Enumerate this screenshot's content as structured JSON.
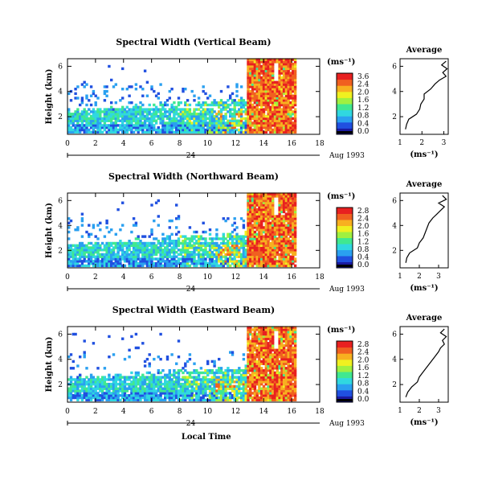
{
  "chart_data": [
    {
      "type": "heatmap",
      "title": "Spectral Width (Vertical Beam)",
      "ylabel": "Height (km)",
      "xlim": [
        0,
        18
      ],
      "ylim": [
        0.6,
        6.6
      ],
      "xticks": [
        "0",
        "2",
        "4",
        "6",
        "8",
        "10",
        "12",
        "14",
        "16",
        "18"
      ],
      "yticks": [
        "2",
        "4",
        "6"
      ],
      "day_label": "24",
      "date_label": "Aug 1993",
      "colorbar": {
        "unit": "(ms⁻¹)",
        "ticks": [
          "3.6",
          "2.4",
          "2.0",
          "1.6",
          "1.2",
          "0.8",
          "0.4",
          "0.0"
        ]
      },
      "average": {
        "title": "Average",
        "xlabel": "(ms⁻¹)",
        "xticks": [
          "1",
          "2",
          "3"
        ],
        "yticks": [
          "2",
          "4",
          "6"
        ],
        "xlim": [
          1,
          3.2
        ],
        "ylim": [
          0.6,
          6.6
        ],
        "height": [
          1.0,
          1.4,
          1.8,
          2.2,
          2.6,
          3.0,
          3.4,
          3.8,
          4.2,
          4.6,
          4.9,
          5.2,
          5.5,
          5.8,
          6.1,
          6.4
        ],
        "width": [
          1.25,
          1.3,
          1.4,
          1.75,
          1.9,
          1.95,
          2.1,
          2.1,
          2.4,
          2.6,
          2.8,
          3.1,
          2.95,
          3.15,
          2.9,
          3.1
        ]
      }
    },
    {
      "type": "heatmap",
      "title": "Spectral Width (Northward Beam)",
      "ylabel": "Height (km)",
      "xlim": [
        0,
        18
      ],
      "ylim": [
        0.6,
        6.6
      ],
      "xticks": [
        "0",
        "2",
        "4",
        "6",
        "8",
        "10",
        "12",
        "14",
        "16",
        "18"
      ],
      "yticks": [
        "2",
        "4",
        "6"
      ],
      "day_label": "24",
      "date_label": "Aug 1993",
      "colorbar": {
        "unit": "(ms⁻¹)",
        "ticks": [
          "2.8",
          "2.4",
          "2.0",
          "1.6",
          "1.2",
          "0.8",
          "0.4",
          "0.0"
        ]
      },
      "average": {
        "title": "Average",
        "xlabel": "(ms⁻¹)",
        "xticks": [
          "1",
          "2",
          "3"
        ],
        "yticks": [
          "2",
          "4",
          "6"
        ],
        "xlim": [
          1,
          3.5
        ],
        "ylim": [
          0.6,
          6.6
        ],
        "height": [
          1.0,
          1.4,
          1.8,
          2.2,
          2.6,
          3.0,
          3.4,
          3.8,
          4.2,
          4.6,
          4.9,
          5.2,
          5.5,
          5.8,
          6.1,
          6.4
        ],
        "width": [
          1.3,
          1.35,
          1.5,
          1.9,
          2.0,
          2.2,
          2.3,
          2.4,
          2.5,
          2.7,
          2.9,
          3.1,
          3.3,
          3.0,
          3.4,
          3.2
        ]
      }
    },
    {
      "type": "heatmap",
      "title": "Spectral Width (Eastward Beam)",
      "ylabel": "Height (km)",
      "xlim": [
        0,
        18
      ],
      "ylim": [
        0.6,
        6.6
      ],
      "xticks": [
        "0",
        "2",
        "4",
        "6",
        "8",
        "10",
        "12",
        "14",
        "16",
        "18"
      ],
      "yticks": [
        "2",
        "4",
        "6"
      ],
      "day_label": "24",
      "date_label": "Aug 1993",
      "xlabel": "Local Time",
      "colorbar": {
        "unit": "(ms⁻¹)",
        "ticks": [
          "2.8",
          "2.4",
          "2.0",
          "1.6",
          "1.2",
          "0.8",
          "0.4",
          "0.0"
        ]
      },
      "average": {
        "title": "Average",
        "xlabel": "(ms⁻¹)",
        "xticks": [
          "1",
          "2",
          "3"
        ],
        "yticks": [
          "2",
          "4",
          "6"
        ],
        "xlim": [
          1,
          3.5
        ],
        "ylim": [
          0.6,
          6.6
        ],
        "height": [
          1.0,
          1.4,
          1.8,
          2.2,
          2.6,
          3.0,
          3.4,
          3.8,
          4.2,
          4.6,
          4.9,
          5.2,
          5.5,
          5.8,
          6.1,
          6.4
        ],
        "width": [
          1.3,
          1.4,
          1.6,
          1.9,
          2.0,
          2.2,
          2.4,
          2.6,
          2.8,
          3.0,
          3.1,
          3.3,
          3.2,
          3.4,
          3.1,
          3.3
        ]
      }
    }
  ],
  "palette": [
    "#1a1aa0",
    "#2050e0",
    "#2aa0f0",
    "#30d8e0",
    "#40e890",
    "#a0f040",
    "#f0f020",
    "#f8b020",
    "#f06020",
    "#e82020"
  ]
}
